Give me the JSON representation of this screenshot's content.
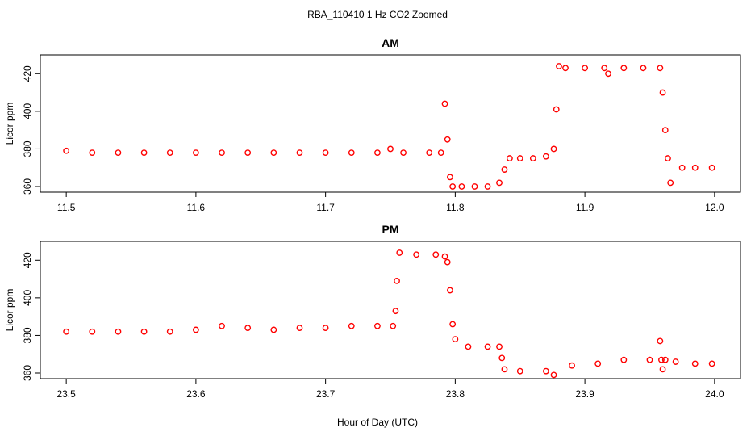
{
  "figure": {
    "title": "RBA_110410  1 Hz CO2 Zoomed",
    "xlabel": "Hour of Day (UTC)"
  },
  "chart_data": [
    {
      "type": "scatter",
      "title": "AM",
      "xlabel": "",
      "ylabel": "Licor ppm",
      "xlim": [
        11.5,
        12.0
      ],
      "ylim": [
        357,
        430
      ],
      "xticks": [
        "11.5",
        "11.6",
        "11.7",
        "11.8",
        "11.9",
        "12.0"
      ],
      "yticks": [
        "360",
        "380",
        "400",
        "420"
      ],
      "marker": "open-circle",
      "color": "#ff0000",
      "x": [
        11.5,
        11.52,
        11.54,
        11.56,
        11.58,
        11.6,
        11.62,
        11.64,
        11.66,
        11.68,
        11.7,
        11.72,
        11.74,
        11.75,
        11.76,
        11.78,
        11.789,
        11.792,
        11.794,
        11.796,
        11.798,
        11.805,
        11.815,
        11.825,
        11.834,
        11.838,
        11.842,
        11.85,
        11.86,
        11.87,
        11.876,
        11.878,
        11.88,
        11.885,
        11.9,
        11.915,
        11.918,
        11.93,
        11.945,
        11.958,
        11.96,
        11.962,
        11.964,
        11.966,
        11.975,
        11.985,
        11.998
      ],
      "y": [
        379,
        378,
        378,
        378,
        378,
        378,
        378,
        378,
        378,
        378,
        378,
        378,
        378,
        380,
        378,
        378,
        378,
        404,
        385,
        365,
        360,
        360,
        360,
        360,
        362,
        369,
        375,
        375,
        375,
        376,
        380,
        401,
        424,
        423,
        423,
        423,
        420,
        423,
        423,
        423,
        410,
        390,
        375,
        362,
        370,
        370,
        370
      ]
    },
    {
      "type": "scatter",
      "title": "PM",
      "xlabel": "",
      "ylabel": "Licor ppm",
      "xlim": [
        23.5,
        24.0
      ],
      "ylim": [
        357,
        430
      ],
      "xticks": [
        "23.5",
        "23.6",
        "23.7",
        "23.8",
        "23.9",
        "24.0"
      ],
      "yticks": [
        "360",
        "380",
        "400",
        "420"
      ],
      "marker": "open-circle",
      "color": "#ff0000",
      "x": [
        23.5,
        23.52,
        23.54,
        23.56,
        23.58,
        23.6,
        23.62,
        23.64,
        23.66,
        23.68,
        23.7,
        23.72,
        23.74,
        23.752,
        23.754,
        23.755,
        23.757,
        23.77,
        23.785,
        23.792,
        23.794,
        23.796,
        23.798,
        23.8,
        23.81,
        23.825,
        23.834,
        23.836,
        23.838,
        23.85,
        23.87,
        23.876,
        23.89,
        23.91,
        23.93,
        23.95,
        23.958,
        23.959,
        23.96,
        23.962,
        23.97,
        23.985,
        23.998
      ],
      "y": [
        382,
        382,
        382,
        382,
        382,
        383,
        385,
        384,
        383,
        384,
        384,
        385,
        385,
        385,
        393,
        409,
        424,
        423,
        423,
        422,
        419,
        404,
        386,
        378,
        374,
        374,
        374,
        368,
        362,
        361,
        361,
        359,
        364,
        365,
        367,
        367,
        377,
        367,
        362,
        367,
        366,
        365,
        365
      ]
    }
  ]
}
